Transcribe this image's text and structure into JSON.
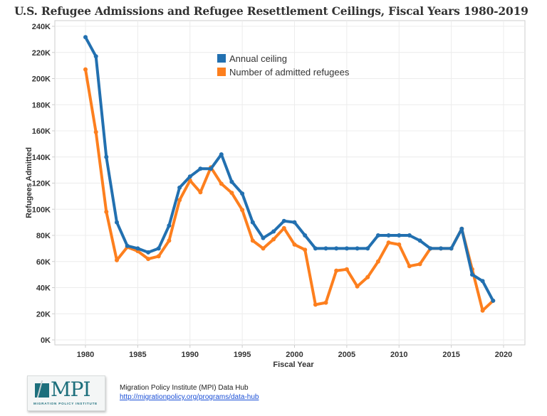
{
  "header": {
    "title": "U.S. Refugee Admissions and Refugee Resettlement Ceilings, Fiscal Years 1980-2019"
  },
  "colors": {
    "ceiling": "#2270b0",
    "admitted": "#fd7f1e",
    "grid": "#ececec",
    "axis": "#cccccc"
  },
  "chart_data": {
    "type": "line",
    "title": "U.S. Refugee Admissions and Refugee Resettlement Ceilings, Fiscal Years 1980-2019",
    "xlabel": "Fiscal Year",
    "ylabel": "Refugees Admitted",
    "xlim": [
      1976,
      2022
    ],
    "ylim": [
      0,
      240000
    ],
    "x_ticks": [
      1980,
      1985,
      1990,
      1995,
      2000,
      2005,
      2010,
      2015,
      2020
    ],
    "x_tick_labels": [
      "1980",
      "1985",
      "1990",
      "1995",
      "2000",
      "2005",
      "2010",
      "2015",
      "2020"
    ],
    "y_ticks": [
      0,
      20000,
      40000,
      60000,
      80000,
      100000,
      120000,
      140000,
      160000,
      180000,
      200000,
      220000,
      240000
    ],
    "y_tick_labels": [
      "0K",
      "20K",
      "40K",
      "60K",
      "80K",
      "100K",
      "120K",
      "140K",
      "160K",
      "180K",
      "200K",
      "220K",
      "240K"
    ],
    "grid": true,
    "legend_position": "top-center",
    "x": [
      1980,
      1981,
      1982,
      1983,
      1984,
      1985,
      1986,
      1987,
      1988,
      1989,
      1990,
      1991,
      1992,
      1993,
      1994,
      1995,
      1996,
      1997,
      1998,
      1999,
      2000,
      2001,
      2002,
      2003,
      2004,
      2005,
      2006,
      2007,
      2008,
      2009,
      2010,
      2011,
      2012,
      2013,
      2014,
      2015,
      2016,
      2017,
      2018,
      2019
    ],
    "series": [
      {
        "name": "Annual ceiling",
        "color": "#2270b0",
        "values": [
          231700,
          217000,
          140000,
          90000,
          72000,
          70000,
          67000,
          70000,
          87500,
          116500,
          125000,
          131000,
          131000,
          142000,
          121000,
          112000,
          90000,
          78000,
          83000,
          91000,
          90000,
          80000,
          70000,
          70000,
          70000,
          70000,
          70000,
          70000,
          80000,
          80000,
          80000,
          80000,
          76000,
          70000,
          70000,
          70000,
          85000,
          50000,
          45000,
          30000
        ]
      },
      {
        "name": "Number of admitted refugees",
        "color": "#fd7f1e",
        "values": [
          207000,
          159000,
          98000,
          61000,
          71000,
          68000,
          62000,
          64000,
          76000,
          107000,
          122000,
          113000,
          132000,
          119500,
          112500,
          99500,
          76000,
          70000,
          77000,
          85500,
          73000,
          69000,
          27000,
          28500,
          53000,
          54000,
          41000,
          48000,
          60000,
          74500,
          73000,
          56500,
          58000,
          70000,
          70000,
          70000,
          85000,
          54000,
          22500,
          30000
        ]
      }
    ]
  },
  "footer": {
    "logo_text": "MPI",
    "logo_subtitle": "MIGRATION POLICY INSTITUTE",
    "source_label": "Migration Policy Institute (MPI) Data Hub",
    "source_link": "http://migrationpolicy.org/programs/data-hub"
  }
}
